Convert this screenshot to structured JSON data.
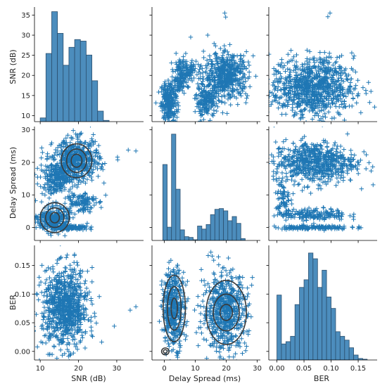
{
  "chart_data": {
    "type": "scatter",
    "kind": "pairplot",
    "variables": [
      {
        "key": "snr",
        "label": "SNR (dB)"
      },
      {
        "key": "delay",
        "label": "Delay Spread (ms)"
      },
      {
        "key": "ber",
        "label": "BER"
      }
    ],
    "ticks": {
      "snr_y": [
        "10",
        "15",
        "20",
        "25",
        "30",
        "35"
      ],
      "delay_y": [
        "0",
        "10",
        "20",
        "30"
      ],
      "ber_y": [
        "0.00",
        "0.05",
        "0.10",
        "0.15"
      ],
      "snr_x": [
        "10",
        "20",
        "30"
      ],
      "delay_x": [
        "0",
        "10",
        "20",
        "30"
      ],
      "ber_x": [
        "0.00",
        "0.05",
        "0.10",
        "0.15"
      ]
    },
    "axis_ranges": {
      "snr": [
        8.5,
        37
      ],
      "delay": [
        -4,
        31
      ],
      "ber": [
        -0.015,
        0.185
      ]
    },
    "marker": "+",
    "color": "#1f77b4",
    "contour_color": "#3a3a3a",
    "histograms": {
      "snr": {
        "bin_edges": [
          10,
          11.5,
          13,
          14.5,
          16,
          17.5,
          19,
          20.5,
          22,
          23.5,
          25,
          26.5,
          28
        ],
        "counts": [
          1.2,
          22,
          35.5,
          28.5,
          18.2,
          24,
          26.5,
          26,
          21.5,
          13.2,
          3.4,
          0.4
        ],
        "ylim": [
          0,
          37
        ]
      },
      "delay": {
        "bin_edges": [
          -0.5,
          0.9,
          2.3,
          3.7,
          5.1,
          6.5,
          7.9,
          9.3,
          10.7,
          12.1,
          13.5,
          14.9,
          16.3,
          17.7,
          19.1,
          20.5,
          21.9,
          23.3,
          24.7,
          26.1
        ],
        "counts": [
          20,
          3.5,
          28,
          13.5,
          2.8,
          1.0,
          0.8,
          0.2,
          3.8,
          3.0,
          4.2,
          6.8,
          8.2,
          8.4,
          7.8,
          5.2,
          6.3,
          4.5,
          0.5
        ],
        "ylim": [
          0,
          30
        ]
      },
      "ber": {
        "bin_edges": [
          0.0,
          0.0083,
          0.0166,
          0.025,
          0.0333,
          0.0416,
          0.05,
          0.0583,
          0.0666,
          0.075,
          0.0833,
          0.0916,
          0.1,
          0.1083,
          0.1166,
          0.125,
          0.1333,
          0.1416,
          0.15,
          0.1583,
          0.1666
        ],
        "counts": [
          17,
          4.2,
          4.8,
          6.2,
          14.5,
          19,
          21,
          28,
          26.5,
          19,
          23.5,
          16.5,
          13.5,
          7.4,
          6.2,
          5.2,
          3.2,
          1.3,
          0.4,
          0.2
        ],
        "ylim": [
          0,
          30
        ]
      }
    },
    "scatter_clusters": [
      {
        "x": "delay",
        "y": "snr",
        "cx": 1.5,
        "cy": 13.5,
        "sx": 1.3,
        "sy": 2.5,
        "n": 260
      },
      {
        "x": "delay",
        "y": "snr",
        "cx": 5.0,
        "cy": 19.5,
        "sx": 1.0,
        "sy": 2.2,
        "n": 120
      },
      {
        "x": "delay",
        "y": "snr",
        "cx": 7.5,
        "cy": 21.0,
        "sx": 1.5,
        "sy": 1.5,
        "n": 90
      },
      {
        "x": "delay",
        "y": "snr",
        "cx": 13.5,
        "cy": 13.5,
        "sx": 1.6,
        "sy": 2.0,
        "n": 180
      },
      {
        "x": "delay",
        "y": "snr",
        "cx": 20.0,
        "cy": 20.0,
        "sx": 3.5,
        "sy": 2.8,
        "n": 520
      },
      {
        "x": "snr",
        "y": "delay",
        "cx": 19.5,
        "cy": 20.5,
        "sx": 3.0,
        "sy": 3.3,
        "n": 520
      },
      {
        "x": "snr",
        "y": "delay",
        "cx": 14.0,
        "cy": 15.0,
        "sx": 2.0,
        "sy": 2.5,
        "n": 220
      },
      {
        "x": "snr",
        "y": "delay",
        "cx": 20.5,
        "cy": 8.0,
        "sx": 2.0,
        "sy": 1.6,
        "n": 120
      },
      {
        "x": "snr",
        "y": "delay",
        "cx": 13.5,
        "cy": 2.5,
        "sx": 2.0,
        "sy": 1.8,
        "n": 300
      },
      {
        "x": "snr",
        "y": "delay",
        "cx": 17.5,
        "cy": 0.0,
        "sx": 2.5,
        "sy": 0.3,
        "n": 140
      },
      {
        "x": "ber",
        "y": "snr",
        "cx": 0.065,
        "cy": 17.0,
        "sx": 0.038,
        "sy": 3.6,
        "n": 900
      },
      {
        "x": "ber",
        "y": "delay",
        "cx": 0.07,
        "cy": 20.0,
        "sx": 0.038,
        "sy": 3.2,
        "n": 650
      },
      {
        "x": "ber",
        "y": "delay",
        "cx": 0.065,
        "cy": 4.0,
        "sx": 0.032,
        "sy": 0.9,
        "n": 180
      },
      {
        "x": "ber",
        "y": "delay",
        "cx": 0.065,
        "cy": 0.0,
        "sx": 0.035,
        "sy": 0.3,
        "n": 140
      },
      {
        "x": "ber",
        "y": "delay",
        "cx": 0.012,
        "cy": 9.0,
        "sx": 0.006,
        "sy": 3.0,
        "n": 60
      },
      {
        "x": "snr",
        "y": "ber",
        "cx": 16.5,
        "cy": 0.075,
        "sx": 3.0,
        "sy": 0.034,
        "n": 850
      },
      {
        "x": "delay",
        "y": "ber",
        "cx": 3.0,
        "cy": 0.075,
        "sx": 1.8,
        "sy": 0.034,
        "n": 420
      },
      {
        "x": "delay",
        "y": "ber",
        "cx": 19.5,
        "cy": 0.07,
        "sx": 3.6,
        "sy": 0.034,
        "n": 600
      }
    ],
    "contours": [
      {
        "x": "snr",
        "y": "delay",
        "cx": 19.5,
        "cy": 20.5,
        "rx": [
          1.4,
          2.6,
          4.0
        ],
        "ry": [
          2.0,
          3.6,
          5.2
        ]
      },
      {
        "x": "snr",
        "y": "delay",
        "cx": 13.8,
        "cy": 3.0,
        "rx": [
          1.2,
          2.4,
          3.8
        ],
        "ry": [
          1.6,
          3.0,
          4.6
        ]
      },
      {
        "x": "delay",
        "y": "ber",
        "cx": 3.2,
        "cy": 0.075,
        "rx": [
          1.0,
          2.2,
          3.6
        ],
        "ry": [
          0.018,
          0.038,
          0.058
        ]
      },
      {
        "x": "delay",
        "y": "ber",
        "cx": 20.0,
        "cy": 0.068,
        "rx": [
          2.0,
          4.2,
          6.5
        ],
        "ry": [
          0.014,
          0.032,
          0.056
        ]
      },
      {
        "x": "delay",
        "y": "ber",
        "cx": 0.3,
        "cy": 0.0,
        "rx": [
          0.6,
          1.2
        ],
        "ry": [
          0.003,
          0.006
        ]
      }
    ],
    "outliers": [
      {
        "x": "delay",
        "y": "snr",
        "points": [
          [
            19.5,
            35.5
          ],
          [
            19.8,
            34.5
          ],
          [
            8.5,
            29.5
          ],
          [
            14.0,
            30.0
          ]
        ]
      },
      {
        "x": "ber",
        "y": "snr",
        "points": [
          [
            0.098,
            35.5
          ],
          [
            0.094,
            34.6
          ]
        ]
      },
      {
        "x": "snr",
        "y": "delay",
        "points": [
          [
            35.0,
            23.5
          ],
          [
            33.0,
            23.8
          ]
        ]
      },
      {
        "x": "snr",
        "y": "ber",
        "points": [
          [
            33.5,
            0.072
          ],
          [
            35.0,
            0.078
          ]
        ]
      }
    ]
  }
}
